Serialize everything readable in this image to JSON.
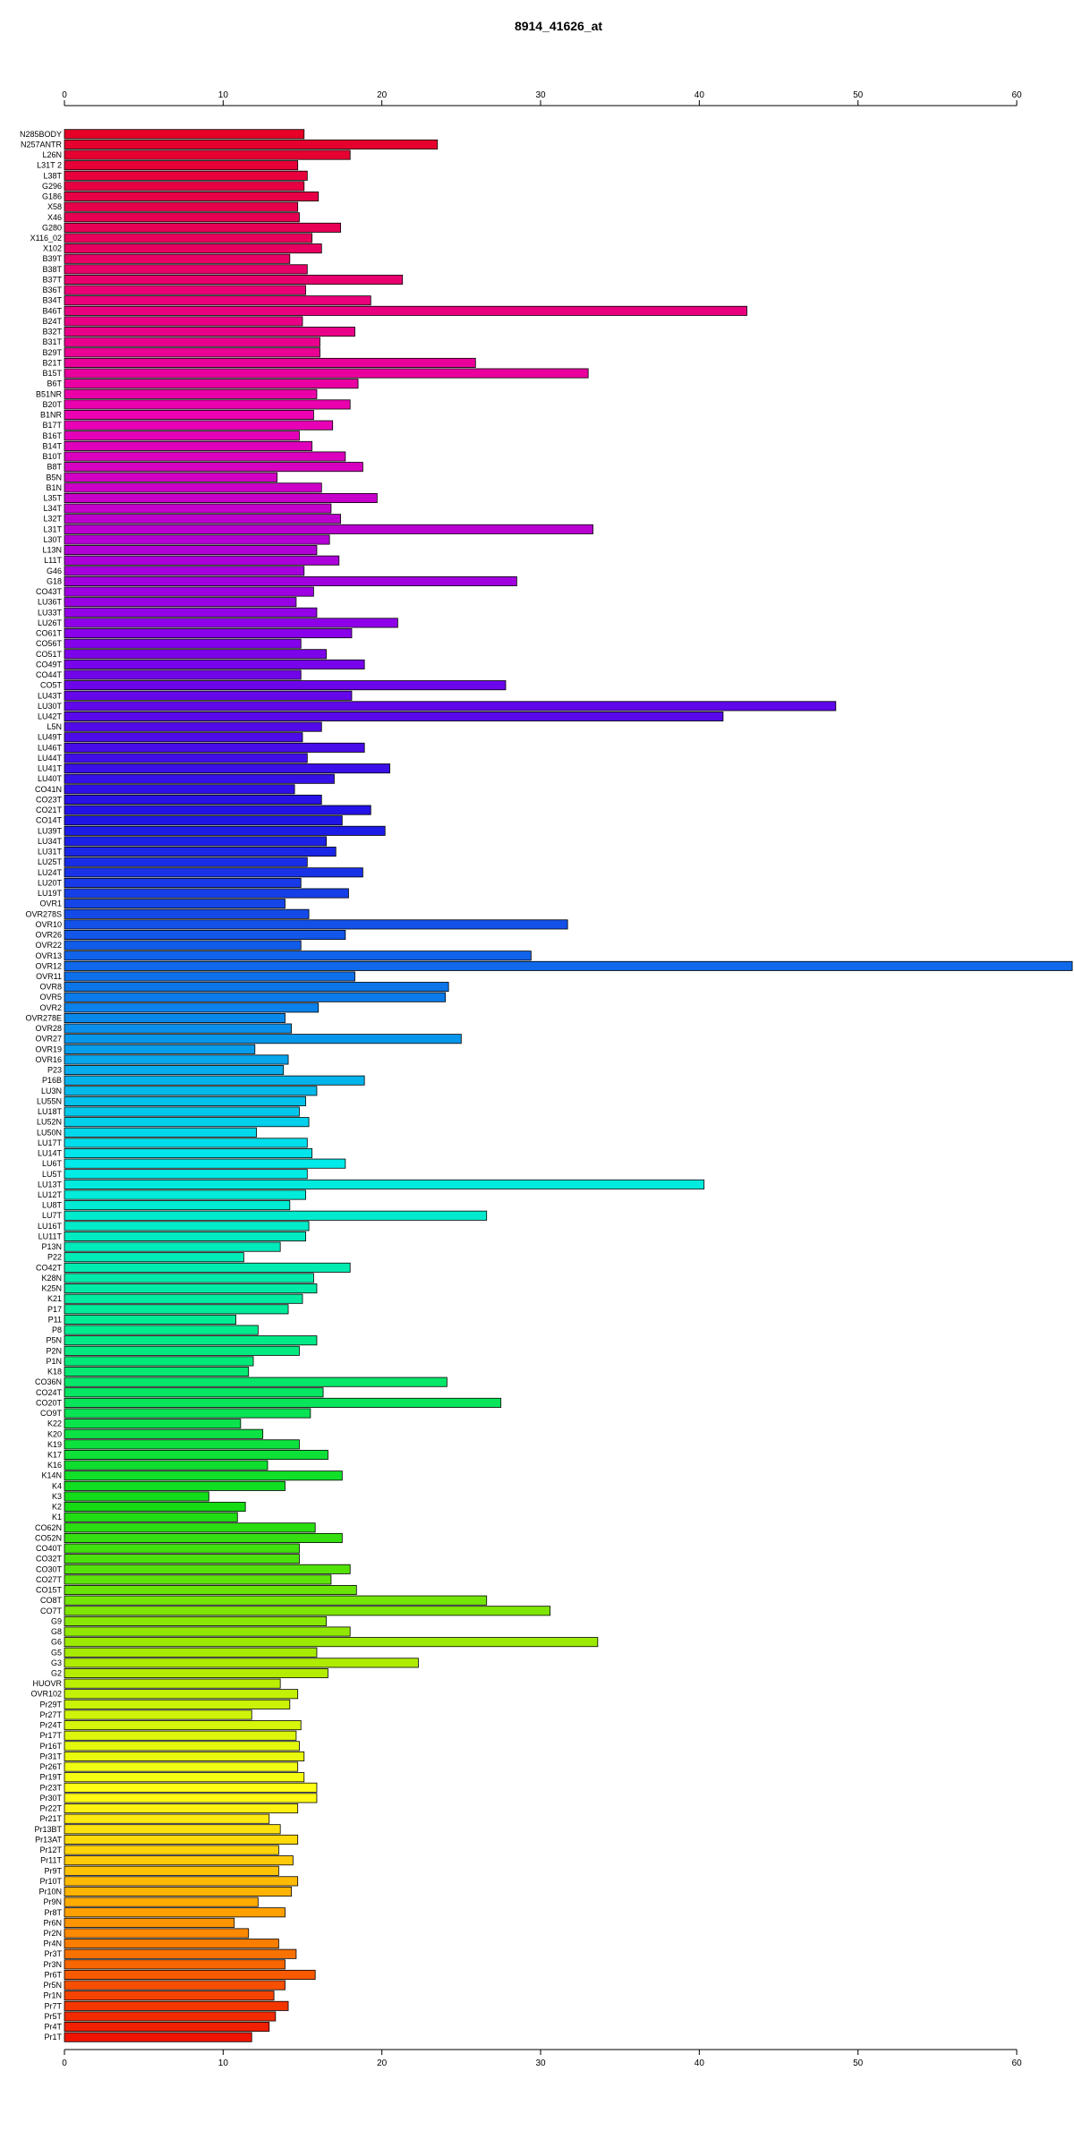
{
  "chart_data": {
    "type": "bar",
    "orientation": "horizontal",
    "title": "8914_41626_at",
    "xlabel": "",
    "ylabel": "",
    "xlim": [
      0,
      63.5
    ],
    "xticks": [
      0,
      10,
      20,
      30,
      40,
      50,
      60
    ],
    "grid": false,
    "categories": [
      "N285BODY",
      "N257ANTR",
      "L26N",
      "L31T 2",
      "L38T",
      "G296",
      "G186",
      "X58",
      "X46",
      "G280",
      "X116_02",
      "X102",
      "B39T",
      "B38T",
      "B37T",
      "B36T",
      "B34T",
      "B46T",
      "B24T",
      "B32T",
      "B31T",
      "B29T",
      "B21T",
      "B15T",
      "B6T",
      "B51NR",
      "B20T",
      "B1NR",
      "B17T",
      "B16T",
      "B14T",
      "B10T",
      "B8T",
      "B5N",
      "B1N",
      "L35T",
      "L34T",
      "L32T",
      "L31T",
      "L30T",
      "L13N",
      "L11T",
      "G46",
      "G18",
      "CO43T",
      "LU36T",
      "LU33T",
      "LU26T",
      "CO61T",
      "CO56T",
      "CO51T",
      "CO49T",
      "CO44T",
      "CO5T",
      "LU43T",
      "LU30T",
      "LU42T",
      "L5N",
      "LU49T",
      "LU46T",
      "LU44T",
      "LU41T",
      "LU40T",
      "CO41N",
      "CO23T",
      "CO21T",
      "CO14T",
      "LU39T",
      "LU34T",
      "LU31T",
      "LU25T",
      "LU24T",
      "LU20T",
      "LU19T",
      "OVR1",
      "OVR278S",
      "OVR10",
      "OVR26",
      "OVR22",
      "OVR13",
      "OVR12",
      "OVR11",
      "OVR8",
      "OVR5",
      "OVR2",
      "OVR278E",
      "OVR28",
      "OVR27",
      "OVR19",
      "OVR16",
      "P23",
      "P16B",
      "LU3N",
      "LU55N",
      "LU18T",
      "LU52N",
      "LU50N",
      "LU17T",
      "LU14T",
      "LU6T",
      "LU5T",
      "LU13T",
      "LU12T",
      "LU8T",
      "LU7T",
      "LU16T",
      "LU11T",
      "P13N",
      "P22",
      "CO42T",
      "K28N",
      "K25N",
      "K21",
      "P17",
      "P11",
      "P8",
      "P5N",
      "P2N",
      "P1N",
      "K18",
      "CO36N",
      "CO24T",
      "CO20T",
      "CO9T",
      "K22",
      "K20",
      "K19",
      "K17",
      "K16",
      "K14N",
      "K4",
      "K3",
      "K2",
      "K1",
      "CO62N",
      "CO52N",
      "CO40T",
      "CO32T",
      "CO30T",
      "CO27T",
      "CO15T",
      "CO8T",
      "CO7T",
      "G9",
      "G8",
      "G6",
      "G5",
      "G3",
      "G2",
      "HUOVR",
      "OVR102",
      "Pr29T",
      "Pr27T",
      "Pr24T",
      "Pr17T",
      "Pr16T",
      "Pr31T",
      "Pr26T",
      "Pr19T",
      "Pr23T",
      "Pr30T",
      "Pr22T",
      "Pr21T",
      "Pr13BT",
      "Pr13AT",
      "Pr12T",
      "Pr11T",
      "Pr9T",
      "Pr10T",
      "Pr10N",
      "Pr9N",
      "Pr8T",
      "Pr6N",
      "Pr2N",
      "Pr4N",
      "Pr3T",
      "Pr3N",
      "Pr6T",
      "Pr5N",
      "Pr1N",
      "Pr7T",
      "Pr5T",
      "Pr4T",
      "Pr1T"
    ],
    "values": [
      15.1,
      23.5,
      18,
      14.7,
      15.3,
      15.1,
      16,
      14.7,
      14.8,
      17.4,
      15.6,
      16.2,
      14.2,
      15.3,
      21.3,
      15.2,
      19.3,
      43,
      15,
      18.3,
      16.1,
      16.1,
      25.9,
      33,
      18.5,
      15.9,
      18,
      15.7,
      16.9,
      14.8,
      15.6,
      17.7,
      18.8,
      13.4,
      16.2,
      19.7,
      16.8,
      17.4,
      33.3,
      16.7,
      15.9,
      17.3,
      15.1,
      28.5,
      15.7,
      14.6,
      15.9,
      21,
      18.1,
      14.9,
      16.5,
      18.9,
      14.9,
      27.8,
      18.1,
      48.6,
      41.5,
      16.2,
      15,
      18.9,
      15.3,
      20.5,
      17,
      14.5,
      16.2,
      19.3,
      17.5,
      20.2,
      16.5,
      17.1,
      15.3,
      18.8,
      14.9,
      17.9,
      13.9,
      15.4,
      31.7,
      17.7,
      14.9,
      29.4,
      63.5,
      18.3,
      24.2,
      24,
      16,
      13.9,
      14.3,
      25,
      12,
      14.1,
      13.8,
      18.9,
      15.9,
      15.2,
      14.8,
      15.4,
      12.1,
      15.3,
      15.6,
      17.7,
      15.3,
      40.3,
      15.2,
      14.2,
      26.6,
      15.4,
      15.2,
      13.6,
      11.3,
      18,
      15.7,
      15.9,
      15,
      14.1,
      10.8,
      12.2,
      15.9,
      14.8,
      11.9,
      11.6,
      24.1,
      16.3,
      27.5,
      15.5,
      11.1,
      12.5,
      14.8,
      16.6,
      12.8,
      17.5,
      13.9,
      9.1,
      11.4,
      10.9,
      15.8,
      17.5,
      14.8,
      14.8,
      18,
      16.8,
      18.4,
      26.6,
      30.6,
      16.5,
      18,
      33.6,
      15.9,
      22.3,
      16.6,
      13.6,
      14.7,
      14.2,
      11.8,
      14.9,
      14.6,
      14.8,
      15.1,
      14.7,
      15.1,
      15.9,
      15.9,
      14.7,
      12.9,
      13.6,
      14.7,
      13.5,
      14.4,
      13.5,
      14.7,
      14.3,
      12.2,
      13.9,
      10.7,
      11.6,
      13.5,
      14.6,
      13.9,
      15.8,
      13.9,
      13.2,
      14.1,
      13.3,
      12.9,
      11.8
    ]
  }
}
